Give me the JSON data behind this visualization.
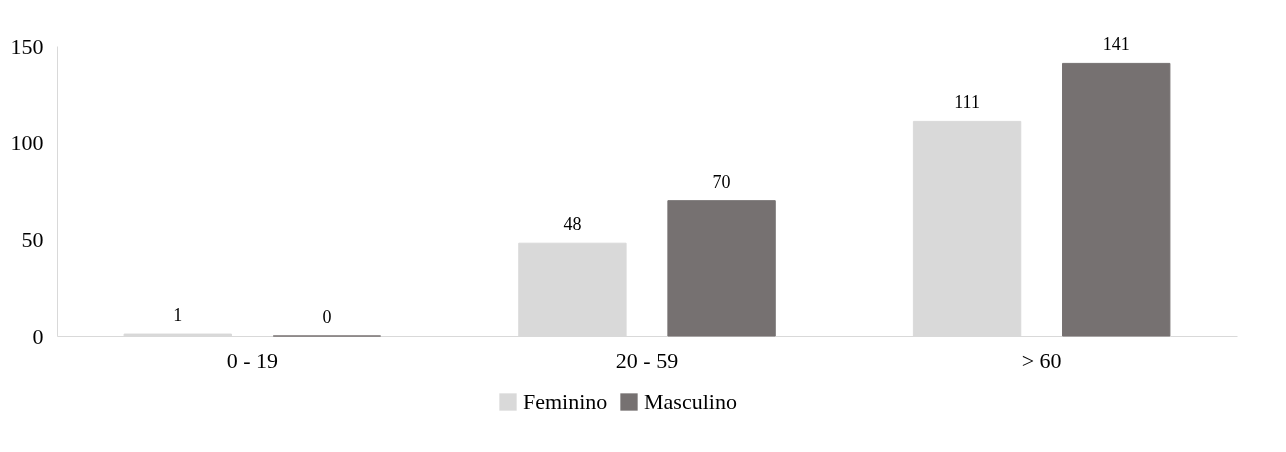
{
  "chart_data": {
    "type": "bar",
    "categories": [
      "0 - 19",
      "20 - 59",
      "> 60"
    ],
    "series": [
      {
        "name": "Feminino",
        "color": "#d9d9d9",
        "values": [
          1,
          48,
          111
        ]
      },
      {
        "name": "Masculino",
        "color": "#767171",
        "values": [
          0,
          70,
          141
        ]
      }
    ],
    "ylim": [
      0,
      150
    ],
    "yticks": [
      0,
      50,
      100,
      150
    ],
    "grid": false,
    "legend": "bottom",
    "data_labels": true
  }
}
